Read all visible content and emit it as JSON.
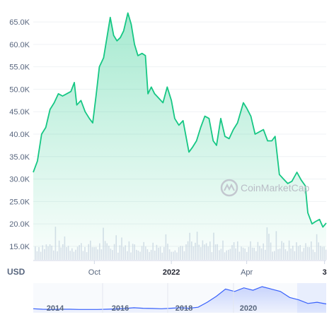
{
  "currency_label": "USD",
  "watermark": "CoinMarketCap",
  "colors": {
    "line": "#16c784",
    "fill_top": "#16c784",
    "grid": "#eff2f5",
    "volume": "#cfd6e4",
    "nav_line": "#3861fb"
  },
  "chart_data": {
    "type": "line",
    "title": "",
    "xlabel": "",
    "ylabel": "",
    "ylim": [
      12000,
      68000
    ],
    "yticks": [
      {
        "value": 15000,
        "label": "15.0K"
      },
      {
        "value": 20000,
        "label": "20.0K"
      },
      {
        "value": 25000,
        "label": "25.0K"
      },
      {
        "value": 30000,
        "label": "30.0K"
      },
      {
        "value": 35000,
        "label": "35.0K"
      },
      {
        "value": 40000,
        "label": "40.0K"
      },
      {
        "value": 45000,
        "label": "45.0K"
      },
      {
        "value": 50000,
        "label": "50.0K"
      },
      {
        "value": 55000,
        "label": "55.0K"
      },
      {
        "value": 60000,
        "label": "60.0K"
      },
      {
        "value": 65000,
        "label": "65.0K"
      }
    ],
    "xlim": [
      "2021-07-20",
      "2022-07-05"
    ],
    "xticks": [
      {
        "date": "2021-10-01",
        "label": "Oct",
        "bold": false
      },
      {
        "date": "2022-01-01",
        "label": "2022",
        "bold": true
      },
      {
        "date": "2022-04-01",
        "label": "Apr",
        "bold": false
      },
      {
        "date": "2022-07-03",
        "label": "3",
        "bold": true
      }
    ],
    "grid": true,
    "series": [
      {
        "x": [
          "2021-07-20",
          "2021-07-25",
          "2021-07-30",
          "2021-08-04",
          "2021-08-09",
          "2021-08-14",
          "2021-08-19",
          "2021-08-24",
          "2021-08-29",
          "2021-09-03",
          "2021-09-07",
          "2021-09-10",
          "2021-09-15",
          "2021-09-20",
          "2021-09-25",
          "2021-09-29",
          "2021-10-03",
          "2021-10-07",
          "2021-10-12",
          "2021-10-16",
          "2021-10-20",
          "2021-10-24",
          "2021-10-28",
          "2021-11-01",
          "2021-11-05",
          "2021-11-10",
          "2021-11-14",
          "2021-11-18",
          "2021-11-22",
          "2021-11-27",
          "2021-12-01",
          "2021-12-04",
          "2021-12-08",
          "2021-12-12",
          "2021-12-17",
          "2021-12-22",
          "2021-12-27",
          "2022-01-01",
          "2022-01-05",
          "2022-01-10",
          "2022-01-15",
          "2022-01-22",
          "2022-01-26",
          "2022-01-31",
          "2022-02-05",
          "2022-02-10",
          "2022-02-15",
          "2022-02-20",
          "2022-02-24",
          "2022-03-01",
          "2022-03-06",
          "2022-03-11",
          "2022-03-16",
          "2022-03-21",
          "2022-03-28",
          "2022-04-01",
          "2022-04-06",
          "2022-04-11",
          "2022-04-16",
          "2022-04-21",
          "2022-04-26",
          "2022-05-01",
          "2022-05-05",
          "2022-05-10",
          "2022-05-15",
          "2022-05-20",
          "2022-05-25",
          "2022-05-31",
          "2022-06-05",
          "2022-06-10",
          "2022-06-13",
          "2022-06-18",
          "2022-06-22",
          "2022-06-27",
          "2022-07-01",
          "2022-07-05"
        ],
        "y": [
          31500,
          34000,
          40000,
          41500,
          45500,
          47000,
          49000,
          48500,
          49000,
          49500,
          51500,
          46500,
          47500,
          45000,
          43500,
          42500,
          48500,
          55000,
          57000,
          61500,
          66000,
          62000,
          60800,
          61500,
          63000,
          67000,
          64500,
          60000,
          57500,
          58000,
          57500,
          49000,
          50500,
          49000,
          48000,
          47000,
          50500,
          47500,
          43500,
          42000,
          43000,
          36000,
          37000,
          38500,
          41500,
          44000,
          43500,
          38500,
          37500,
          43500,
          39500,
          39000,
          41000,
          42500,
          47000,
          45800,
          44000,
          40000,
          40500,
          41000,
          38500,
          38500,
          39500,
          31000,
          30000,
          29000,
          29500,
          31500,
          29800,
          28500,
          22500,
          20000,
          20500,
          21000,
          19300,
          20200
        ]
      }
    ]
  },
  "navigator": {
    "labels": [
      "2014",
      "2016",
      "2018",
      "2020"
    ],
    "values": [
      0.08,
      0.06,
      0.05,
      0.06,
      0.06,
      0.05,
      0.05,
      0.05,
      0.06,
      0.07,
      0.09,
      0.12,
      0.1,
      0.09,
      0.08,
      0.1,
      0.12,
      0.1,
      0.14,
      0.35,
      0.6,
      0.9,
      0.8,
      0.95,
      0.85,
      1.0,
      0.9,
      0.8,
      0.55,
      0.45,
      0.3,
      0.35,
      0.28
    ]
  }
}
